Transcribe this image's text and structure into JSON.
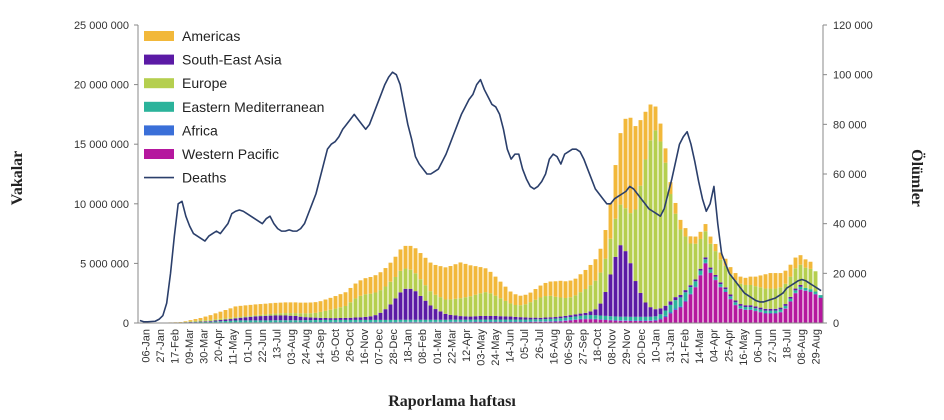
{
  "chart_data": {
    "type": "bar",
    "stacked": true,
    "xlabel": "Raporlama haftası",
    "ylabel": "Vakalar",
    "y2label": "Ölümler",
    "ylim": [
      0,
      25000000
    ],
    "y2lim": [
      0,
      120000
    ],
    "yticks": [
      0,
      5000000,
      10000000,
      15000000,
      20000000,
      25000000
    ],
    "y2ticks": [
      0,
      20000,
      40000,
      60000,
      80000,
      100000,
      120000
    ],
    "yticklabels": [
      "0",
      "5 000 000",
      "10 000 000",
      "15 000 000",
      "20 000 000",
      "25 000 000"
    ],
    "y2ticklabels": [
      "0",
      "20 000",
      "40 000",
      "60 000",
      "80 000",
      "100 000",
      "120 000"
    ],
    "xticklabels": [
      "06-Jan",
      "27-Jan",
      "17-Feb",
      "09-Mar",
      "30-Mar",
      "20-Apr",
      "11-May",
      "01-Jun",
      "22-Jun",
      "13-Jul",
      "03-Aug",
      "24-Aug",
      "14-Sep",
      "05-Oct",
      "26-Oct",
      "16-Nov",
      "07-Dec",
      "28-Dec",
      "18-Jan",
      "08-Feb",
      "01-Mar",
      "22-Mar",
      "12-Apr",
      "03-May",
      "24-May",
      "14-Jun",
      "05-Jul",
      "26-Jul",
      "16-Aug",
      "06-Sep",
      "27-Sep",
      "18-Oct",
      "08-Nov",
      "29-Nov",
      "20-Dec",
      "10-Jan",
      "31-Jan",
      "21-Feb",
      "14-Mar",
      "04-Apr",
      "25-Apr",
      "16-May",
      "06-Jun",
      "27-Jun",
      "18-Jul",
      "08-Aug",
      "29-Aug"
    ],
    "legend_position": "top-left",
    "grid": false,
    "series": [
      {
        "name": "Western Pacific",
        "color": "#b5179e",
        "values": [
          0.01,
          0.02,
          0.03,
          0.03,
          0.03,
          0.03,
          0.03,
          0.03,
          0.03,
          0.03,
          0.03,
          0.03,
          0.03,
          0.03,
          0.03,
          0.03,
          0.03,
          0.03,
          0.03,
          0.03,
          0.03,
          0.03,
          0.03,
          0.03,
          0.03,
          0.03,
          0.03,
          0.04,
          0.04,
          0.04,
          0.04,
          0.04,
          0.04,
          0.04,
          0.04,
          0.05,
          0.05,
          0.05,
          0.05,
          0.05,
          0.05,
          0.05,
          0.05,
          0.05,
          0.05,
          0.05,
          0.05,
          0.05,
          0.05,
          0.05,
          0.05,
          0.05,
          0.06,
          0.06,
          0.06,
          0.06,
          0.06,
          0.06,
          0.06,
          0.06,
          0.06,
          0.06,
          0.07,
          0.07,
          0.07,
          0.07,
          0.07,
          0.08,
          0.08,
          0.08,
          0.08,
          0.08,
          0.08,
          0.08,
          0.08,
          0.08,
          0.08,
          0.08,
          0.09,
          0.1,
          0.1,
          0.1,
          0.11,
          0.12,
          0.14,
          0.18,
          0.22,
          0.26,
          0.3,
          0.32,
          0.32,
          0.3,
          0.28,
          0.25,
          0.22,
          0.2,
          0.18,
          0.18,
          0.17,
          0.17,
          0.17,
          0.17,
          0.18,
          0.2,
          0.3,
          0.5,
          0.8,
          1.1,
          1.3,
          1.8,
          2.4,
          3.0,
          4.0,
          5.0,
          4.2,
          3.6,
          3.0,
          2.6,
          2.0,
          1.5,
          1.2,
          1.1,
          1.1,
          1.0,
          0.9,
          0.8,
          0.8,
          0.8,
          0.9,
          1.2,
          1.8,
          2.5,
          2.8,
          2.7,
          2.6,
          2.4,
          2.1
        ]
      },
      {
        "name": "Africa",
        "color": "#3a6fd8",
        "values": [
          0,
          0,
          0,
          0,
          0,
          0,
          0,
          0,
          0,
          0.01,
          0.01,
          0.01,
          0.01,
          0.01,
          0.01,
          0.02,
          0.02,
          0.02,
          0.02,
          0.03,
          0.03,
          0.03,
          0.03,
          0.03,
          0.03,
          0.03,
          0.03,
          0.03,
          0.03,
          0.03,
          0.03,
          0.03,
          0.03,
          0.03,
          0.03,
          0.03,
          0.03,
          0.04,
          0.04,
          0.04,
          0.04,
          0.04,
          0.04,
          0.04,
          0.04,
          0.04,
          0.04,
          0.04,
          0.04,
          0.04,
          0.04,
          0.04,
          0.04,
          0.04,
          0.04,
          0.04,
          0.04,
          0.04,
          0.04,
          0.04,
          0.04,
          0.04,
          0.04,
          0.04,
          0.04,
          0.04,
          0.04,
          0.04,
          0.04,
          0.04,
          0.04,
          0.04,
          0.04,
          0.04,
          0.04,
          0.04,
          0.04,
          0.04,
          0.04,
          0.04,
          0.04,
          0.05,
          0.05,
          0.05,
          0.05,
          0.05,
          0.05,
          0.05,
          0.05,
          0.05,
          0.05,
          0.05,
          0.05,
          0.05,
          0.05,
          0.05,
          0.05,
          0.05,
          0.05,
          0.05,
          0.05,
          0.05,
          0.05,
          0.06,
          0.08,
          0.1,
          0.12,
          0.12,
          0.1,
          0.08,
          0.06,
          0.05,
          0.05,
          0.05,
          0.04,
          0.04,
          0.04,
          0.04,
          0.04,
          0.04,
          0.04,
          0.04,
          0.04,
          0.04,
          0.04,
          0.04,
          0.04,
          0.04,
          0.04,
          0.04,
          0.04,
          0.04,
          0.04,
          0.04,
          0.04,
          0.04,
          0.04
        ]
      },
      {
        "name": "Eastern Mediterranean",
        "color": "#2bb39b",
        "values": [
          0,
          0,
          0,
          0,
          0,
          0,
          0,
          0,
          0,
          0.01,
          0.02,
          0.03,
          0.04,
          0.05,
          0.06,
          0.08,
          0.1,
          0.12,
          0.14,
          0.15,
          0.16,
          0.16,
          0.16,
          0.16,
          0.16,
          0.16,
          0.16,
          0.16,
          0.16,
          0.16,
          0.16,
          0.16,
          0.16,
          0.17,
          0.17,
          0.17,
          0.17,
          0.17,
          0.17,
          0.17,
          0.17,
          0.17,
          0.17,
          0.17,
          0.17,
          0.17,
          0.17,
          0.17,
          0.17,
          0.17,
          0.17,
          0.17,
          0.17,
          0.17,
          0.17,
          0.17,
          0.17,
          0.17,
          0.17,
          0.17,
          0.17,
          0.17,
          0.17,
          0.17,
          0.17,
          0.17,
          0.17,
          0.17,
          0.17,
          0.17,
          0.17,
          0.17,
          0.17,
          0.17,
          0.17,
          0.17,
          0.17,
          0.17,
          0.17,
          0.17,
          0.17,
          0.18,
          0.19,
          0.2,
          0.21,
          0.22,
          0.23,
          0.24,
          0.26,
          0.28,
          0.3,
          0.3,
          0.3,
          0.3,
          0.3,
          0.3,
          0.3,
          0.3,
          0.3,
          0.3,
          0.3,
          0.3,
          0.3,
          0.3,
          0.35,
          0.45,
          0.6,
          0.7,
          0.75,
          0.7,
          0.55,
          0.45,
          0.35,
          0.3,
          0.26,
          0.24,
          0.22,
          0.2,
          0.2,
          0.2,
          0.2,
          0.2,
          0.2,
          0.2,
          0.2,
          0.2,
          0.2,
          0.2,
          0.2,
          0.2,
          0.2,
          0.2,
          0.2,
          0.2,
          0.2,
          0.2,
          0.2
        ]
      },
      {
        "name": "South-East Asia",
        "color": "#5b1aa5",
        "values": [
          0,
          0,
          0,
          0,
          0,
          0,
          0,
          0,
          0,
          0.01,
          0.02,
          0.03,
          0.04,
          0.05,
          0.06,
          0.08,
          0.1,
          0.12,
          0.14,
          0.18,
          0.22,
          0.26,
          0.3,
          0.34,
          0.36,
          0.38,
          0.4,
          0.4,
          0.4,
          0.4,
          0.38,
          0.36,
          0.3,
          0.25,
          0.22,
          0.2,
          0.18,
          0.16,
          0.15,
          0.15,
          0.16,
          0.17,
          0.18,
          0.2,
          0.22,
          0.25,
          0.3,
          0.4,
          0.6,
          0.9,
          1.3,
          1.8,
          2.3,
          2.6,
          2.6,
          2.4,
          2.0,
          1.6,
          1.2,
          0.9,
          0.7,
          0.5,
          0.4,
          0.35,
          0.3,
          0.28,
          0.26,
          0.28,
          0.3,
          0.3,
          0.3,
          0.3,
          0.28,
          0.26,
          0.25,
          0.22,
          0.2,
          0.18,
          0.15,
          0.14,
          0.13,
          0.13,
          0.13,
          0.13,
          0.14,
          0.15,
          0.16,
          0.17,
          0.18,
          0.2,
          0.3,
          0.5,
          1.0,
          2.0,
          3.5,
          5.0,
          6.0,
          5.5,
          4.5,
          3.0,
          2.0,
          1.2,
          0.8,
          0.6,
          0.5,
          0.4,
          0.3,
          0.25,
          0.2,
          0.18,
          0.16,
          0.15,
          0.15,
          0.15,
          0.15,
          0.15,
          0.15,
          0.15,
          0.15,
          0.15,
          0.15,
          0.15,
          0.15,
          0.15,
          0.15,
          0.15,
          0.15,
          0.15,
          0.15,
          0.15,
          0.15,
          0.15,
          0.15
        ]
      },
      {
        "name": "Europe",
        "color": "#b5cf4f",
        "values": [
          0,
          0,
          0,
          0,
          0,
          0,
          0.01,
          0.01,
          0.02,
          0.04,
          0.06,
          0.08,
          0.1,
          0.1,
          0.1,
          0.1,
          0.1,
          0.1,
          0.1,
          0.1,
          0.1,
          0.1,
          0.1,
          0.1,
          0.11,
          0.12,
          0.14,
          0.16,
          0.18,
          0.2,
          0.22,
          0.24,
          0.28,
          0.32,
          0.36,
          0.4,
          0.5,
          0.6,
          0.7,
          0.8,
          0.9,
          1.0,
          1.3,
          1.6,
          1.8,
          1.9,
          1.9,
          1.9,
          1.9,
          1.9,
          1.9,
          1.8,
          1.8,
          1.7,
          1.6,
          1.5,
          1.4,
          1.3,
          1.2,
          1.2,
          1.2,
          1.2,
          1.3,
          1.4,
          1.5,
          1.6,
          1.7,
          1.8,
          1.9,
          2.0,
          1.9,
          1.7,
          1.5,
          1.3,
          1.1,
          1.0,
          1.0,
          1.1,
          1.3,
          1.5,
          1.7,
          1.8,
          1.8,
          1.7,
          1.6,
          1.5,
          1.5,
          1.6,
          1.8,
          2.0,
          2.2,
          2.4,
          2.6,
          2.8,
          3.0,
          3.2,
          3.4,
          3.6,
          4.2,
          6.0,
          9.0,
          12.0,
          14.0,
          15.0,
          14.0,
          12.0,
          9.0,
          7.0,
          5.5,
          4.5,
          3.5,
          3.0,
          2.5,
          2.2,
          2.0,
          2.0,
          1.9,
          1.8,
          1.7,
          1.7,
          1.7,
          1.7,
          1.7,
          1.7,
          1.7,
          1.7,
          1.7,
          1.7,
          1.7,
          1.7,
          1.7,
          1.7,
          1.7,
          1.7,
          1.7,
          1.7
        ]
      },
      {
        "name": "Americas",
        "color": "#f2b83a",
        "values": [
          0,
          0,
          0,
          0,
          0,
          0,
          0.01,
          0.02,
          0.03,
          0.05,
          0.1,
          0.15,
          0.2,
          0.3,
          0.4,
          0.5,
          0.6,
          0.7,
          0.8,
          0.9,
          0.9,
          0.9,
          0.9,
          0.9,
          0.9,
          0.9,
          0.9,
          0.9,
          0.9,
          0.9,
          0.9,
          0.9,
          0.9,
          0.9,
          0.9,
          0.9,
          0.9,
          0.95,
          1.0,
          1.05,
          1.1,
          1.15,
          1.2,
          1.25,
          1.3,
          1.35,
          1.4,
          1.45,
          1.5,
          1.55,
          1.6,
          1.7,
          1.8,
          1.9,
          2.0,
          2.1,
          2.2,
          2.3,
          2.4,
          2.5,
          2.6,
          2.7,
          2.8,
          2.9,
          3.0,
          2.8,
          2.6,
          2.4,
          2.2,
          2.0,
          1.8,
          1.6,
          1.4,
          1.2,
          1.0,
          0.9,
          0.8,
          0.8,
          0.8,
          0.9,
          1.0,
          1.1,
          1.2,
          1.3,
          1.4,
          1.4,
          1.4,
          1.4,
          1.5,
          1.6,
          1.7,
          1.8,
          2.0,
          2.4,
          3.0,
          4.5,
          6.0,
          7.5,
          8.0,
          7.0,
          5.5,
          4.0,
          3.0,
          2.0,
          1.5,
          1.2,
          1.0,
          0.9,
          0.8,
          0.7,
          0.6,
          0.6,
          0.6,
          0.6,
          0.6,
          0.6,
          0.6,
          0.6,
          0.6,
          0.6,
          0.6,
          0.6,
          0.7,
          0.8,
          1.0,
          1.2,
          1.3,
          1.3,
          1.2,
          1.1,
          1.0,
          0.9,
          0.8,
          0.7,
          0.6
        ]
      }
    ],
    "series_units_note": "",
    "line": {
      "name": "Deaths",
      "color": "#2b3f6b",
      "axis": "right",
      "values": [
        1000,
        500,
        500,
        600,
        700,
        1500,
        3000,
        8000,
        20000,
        35000,
        48000,
        49000,
        43000,
        39000,
        36000,
        35000,
        34000,
        33000,
        35000,
        36000,
        37000,
        36000,
        38000,
        40000,
        44000,
        45000,
        45500,
        45000,
        44000,
        43000,
        42000,
        41000,
        40000,
        42000,
        43000,
        40000,
        38000,
        37000,
        37000,
        37500,
        37000,
        37000,
        38000,
        40000,
        44000,
        48000,
        52000,
        58000,
        64000,
        70000,
        72000,
        73000,
        75000,
        78000,
        80000,
        82000,
        84000,
        82000,
        80000,
        78000,
        80000,
        84000,
        88000,
        92000,
        96000,
        99000,
        101000,
        100000,
        96000,
        88000,
        80000,
        74000,
        67000,
        64000,
        62000,
        60000,
        60000,
        61000,
        62000,
        65000,
        68000,
        72000,
        76000,
        80000,
        84000,
        87000,
        90000,
        92000,
        96000,
        98000,
        94000,
        91000,
        88000,
        87000,
        84000,
        78000,
        70000,
        66000,
        68000,
        68000,
        62000,
        58000,
        55000,
        54000,
        55000,
        57000,
        60000,
        66000,
        68000,
        67000,
        64000,
        68000,
        69000,
        70000,
        70000,
        69000,
        66000,
        62000,
        58000,
        54000,
        52000,
        50000,
        48000,
        48000,
        50000,
        51000,
        52000,
        53000,
        55000,
        54000,
        52000,
        50000,
        48000,
        46000,
        45000,
        44000,
        43000,
        46000,
        52000,
        58000,
        65000,
        72000,
        75000,
        77000,
        72000,
        65000,
        57000,
        50000,
        45000,
        48000,
        55000,
        40000,
        28000,
        24000,
        20000,
        18000,
        16000,
        14000,
        12000,
        11000,
        10000,
        9000,
        8500,
        8500,
        9000,
        9500,
        10000,
        11000,
        12000,
        14000,
        15000,
        16000,
        17000,
        17500,
        17000,
        16000,
        15000,
        14000,
        13000
      ]
    },
    "legend": [
      {
        "label": "Americas",
        "kind": "box",
        "color": "#f2b83a"
      },
      {
        "label": "South-East Asia",
        "kind": "box",
        "color": "#5b1aa5"
      },
      {
        "label": "Europe",
        "kind": "box",
        "color": "#b5cf4f"
      },
      {
        "label": "Eastern Mediterranean",
        "kind": "box",
        "color": "#2bb39b"
      },
      {
        "label": "Africa",
        "kind": "box",
        "color": "#3a6fd8"
      },
      {
        "label": "Western Pacific",
        "kind": "box",
        "color": "#b5179e"
      },
      {
        "label": "Deaths",
        "kind": "line",
        "color": "#2b3f6b"
      }
    ]
  }
}
